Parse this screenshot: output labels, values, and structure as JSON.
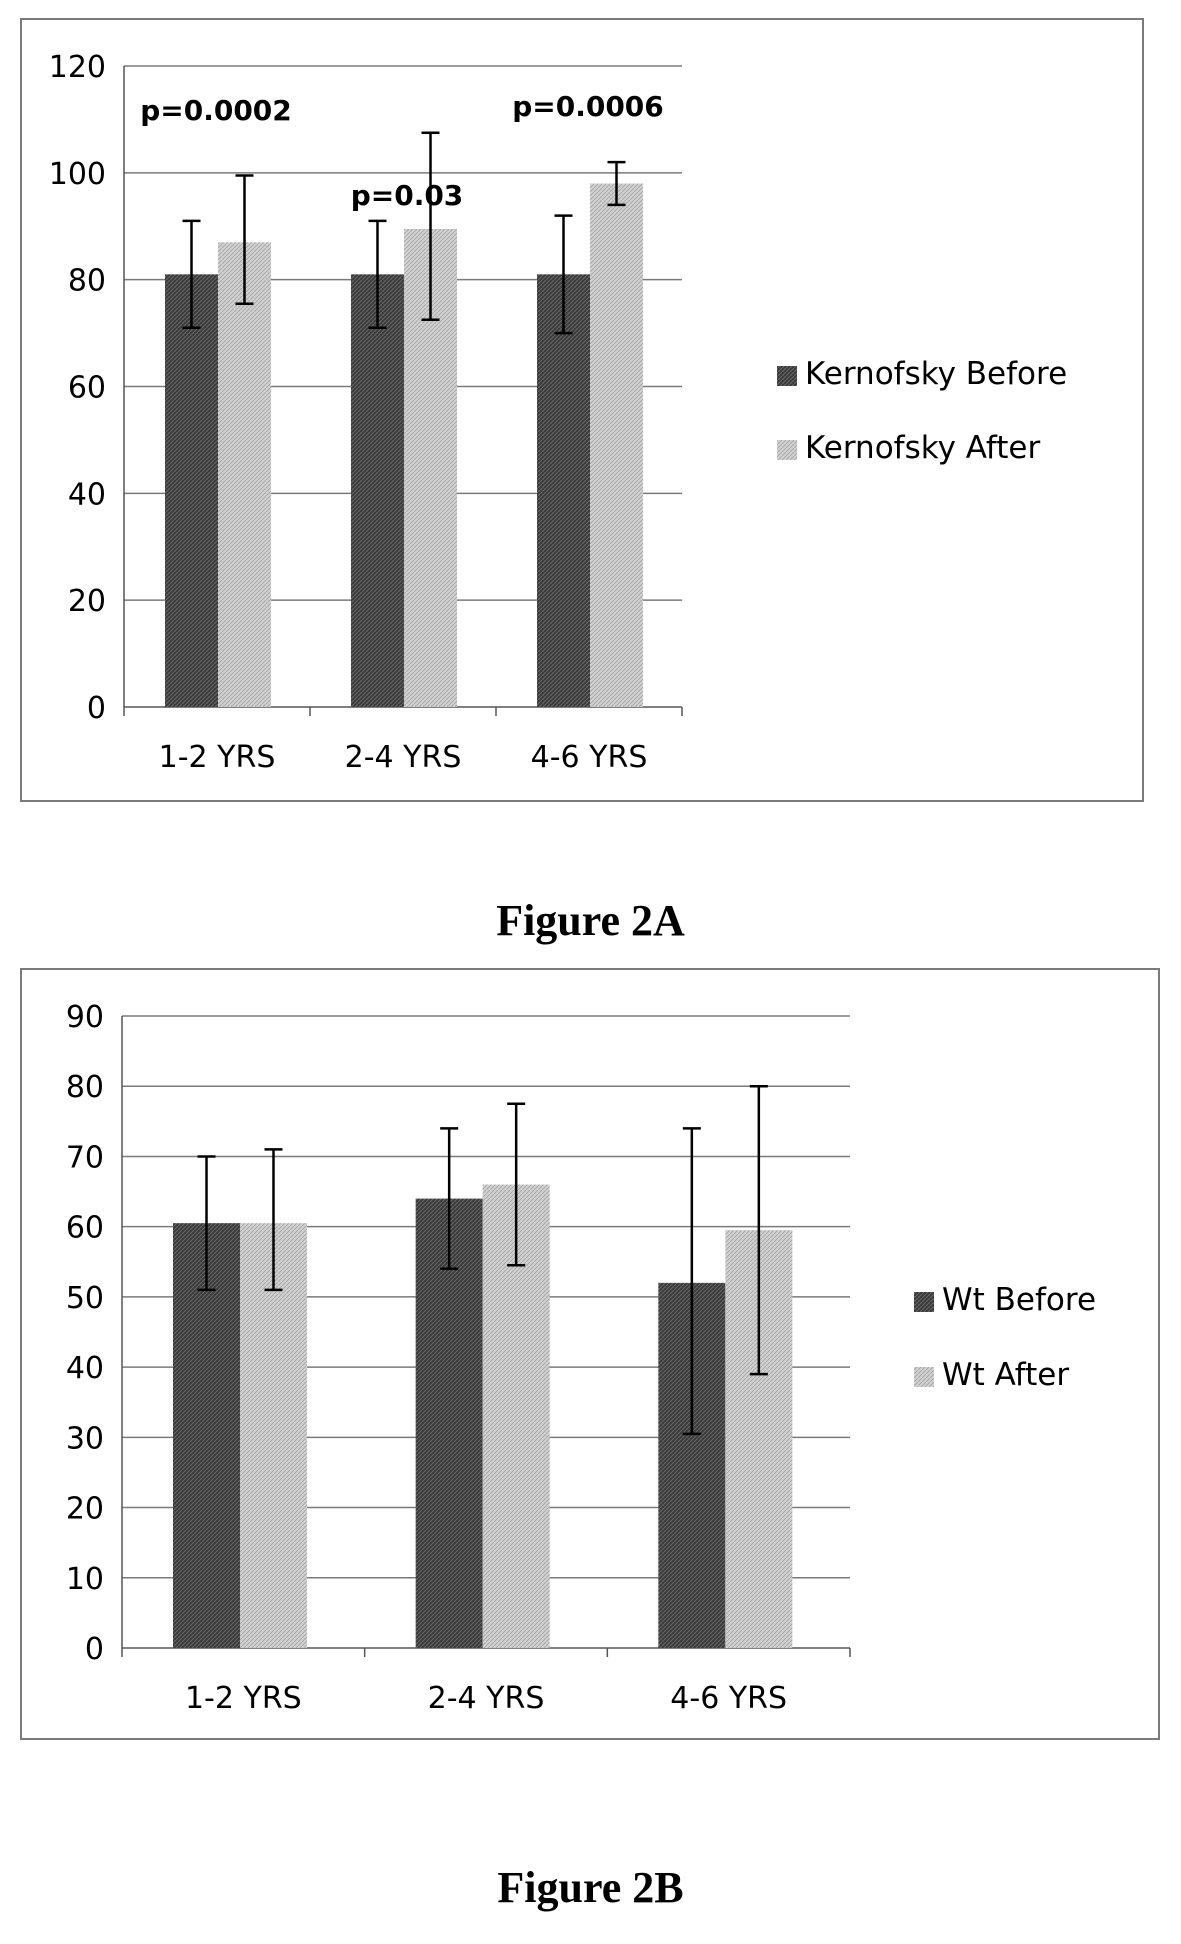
{
  "chart_data": [
    {
      "type": "bar",
      "categories": [
        "1-2 YRS",
        "2-4 YRS",
        "4-6 YRS"
      ],
      "series": [
        {
          "name": "Kernofsky Before",
          "values": [
            81,
            81,
            81
          ],
          "error_low": [
            71,
            71,
            70
          ],
          "error_high": [
            91,
            91,
            92
          ],
          "color": "#4a4a4a"
        },
        {
          "name": "Kernofsky After",
          "values": [
            87,
            89.5,
            98
          ],
          "error_low": [
            75.5,
            72.5,
            94
          ],
          "error_high": [
            99.5,
            107.5,
            102
          ],
          "color": "#c4c4c4"
        }
      ],
      "annotations": [
        "p=0.0002",
        "p=0.03",
        "p=0.0006"
      ],
      "ylim": [
        0,
        120
      ],
      "yticks": [
        0,
        20,
        40,
        60,
        80,
        100,
        120
      ],
      "grid": true,
      "legend": "right"
    },
    {
      "type": "bar",
      "categories": [
        "1-2 YRS",
        "2-4 YRS",
        "4-6 YRS"
      ],
      "series": [
        {
          "name": "Wt Before",
          "values": [
            60.5,
            64,
            52
          ],
          "error_low": [
            51,
            54,
            30.5
          ],
          "error_high": [
            70,
            74,
            74
          ],
          "color": "#4a4a4a"
        },
        {
          "name": "Wt After",
          "values": [
            60.5,
            66,
            59.5
          ],
          "error_low": [
            51,
            54.5,
            39
          ],
          "error_high": [
            71,
            77.5,
            80
          ],
          "color": "#c4c4c4"
        }
      ],
      "ylim": [
        0,
        90
      ],
      "yticks": [
        0,
        10,
        20,
        30,
        40,
        50,
        60,
        70,
        80,
        90
      ],
      "grid": true,
      "legend": "right"
    }
  ],
  "captions": {
    "a": "Figure 2A",
    "b": "Figure 2B"
  }
}
